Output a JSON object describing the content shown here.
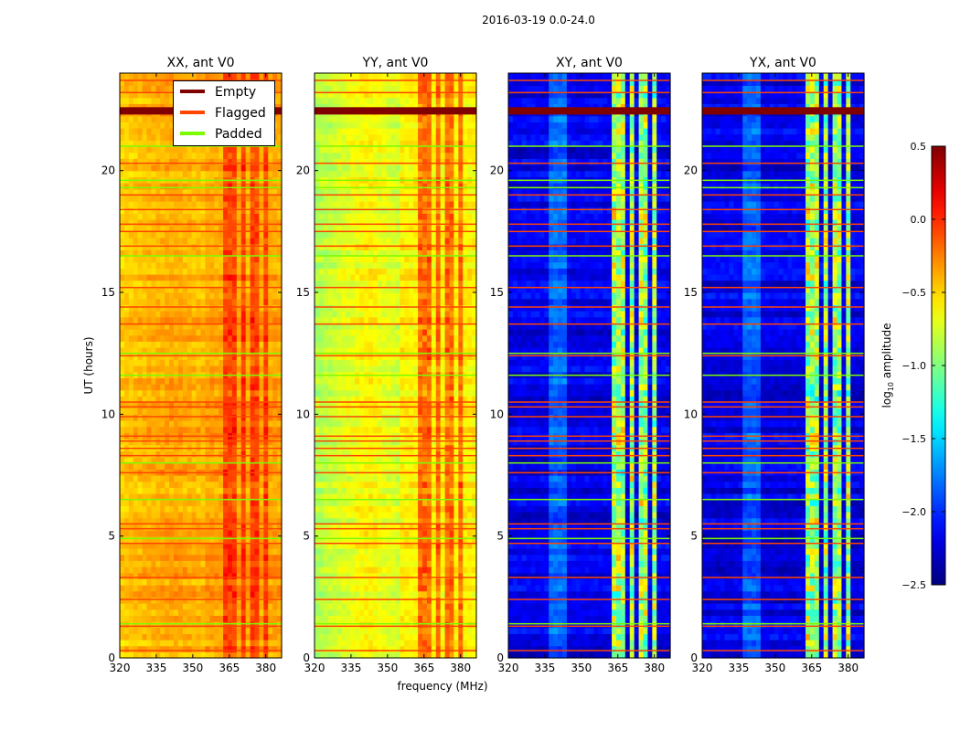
{
  "chart_data": {
    "type": "heatmap",
    "title": "2016-03-19 0.0-24.0",
    "xlabel": "frequency (MHz)",
    "ylabel": "UT (hours)",
    "xlim": [
      320,
      386.5
    ],
    "ylim": [
      0,
      24
    ],
    "xticks": [
      "320",
      "335",
      "350",
      "365",
      "380"
    ],
    "xtick_values": [
      320,
      335,
      350,
      365,
      380
    ],
    "yticks": [
      "0",
      "5",
      "10",
      "15",
      "20"
    ],
    "ytick_values": [
      0,
      5,
      10,
      15,
      20
    ],
    "colormap": "jet",
    "colorbar": {
      "label_prefix": "log",
      "label_sub": "10",
      "label_suffix": " amplitude",
      "range": [
        -2.5,
        0.5
      ],
      "ticks": [
        "0.5",
        "0.0",
        "−0.5",
        "−1.0",
        "−1.5",
        "−2.0",
        "−2.5"
      ],
      "tick_values": [
        0.5,
        0.0,
        -0.5,
        -1.0,
        -1.5,
        -2.0,
        -2.5
      ]
    },
    "panels": [
      {
        "title": "XX, ant V0",
        "baseline": -0.35,
        "band_boost": 0.3
      },
      {
        "title": "YY, ant V0",
        "baseline": -0.6,
        "band_boost": 0.4
      },
      {
        "title": "XY, ant V0",
        "baseline": -2.2,
        "band_boost": 1.3
      },
      {
        "title": "YX, ant V0",
        "baseline": -2.2,
        "band_boost": 1.3
      }
    ],
    "bright_bands_mhz": [
      [
        363,
        368
      ],
      [
        369.5,
        372.5
      ],
      [
        374,
        376.5
      ],
      [
        378.5,
        381.5
      ]
    ],
    "legend": {
      "placement": "upper-right of first panel",
      "entries": [
        {
          "label": "Empty",
          "color": "#800000"
        },
        {
          "label": "Flagged",
          "color": "#ff4500"
        },
        {
          "label": "Padded",
          "color": "#7cfc00"
        }
      ]
    },
    "empty_hours": [
      [
        22.3,
        22.6
      ]
    ],
    "flagged_hours": [
      0.3,
      1.3,
      2.4,
      3.3,
      4.7,
      5.3,
      5.5,
      7.6,
      8.3,
      8.6,
      8.9,
      9.1,
      9.9,
      10.3,
      10.5,
      12.4,
      13.7,
      14.4,
      15.2,
      16.9,
      17.5,
      17.8,
      18.4,
      19.0,
      20.3,
      23.2,
      23.7
    ],
    "padded_hours": [
      1.4,
      4.9,
      6.5,
      8.0,
      11.6,
      12.5,
      16.5,
      19.3,
      19.6,
      21.0
    ]
  }
}
